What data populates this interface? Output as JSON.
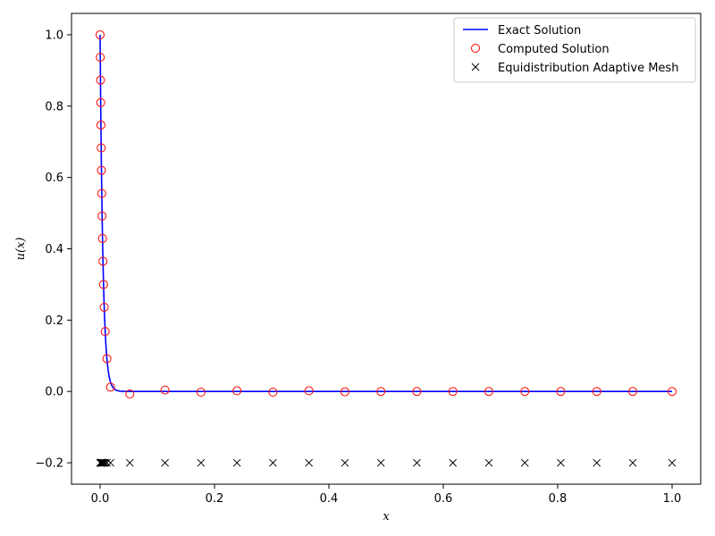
{
  "chart_data": {
    "type": "line",
    "title": "",
    "xlabel": "x",
    "ylabel": "u(x)",
    "xlim": [
      -0.05,
      1.05
    ],
    "ylim": [
      -0.26,
      1.06
    ],
    "xticks": [
      0.0,
      0.2,
      0.4,
      0.6,
      0.8,
      1.0
    ],
    "xtick_labels": [
      "0.0",
      "0.2",
      "0.4",
      "0.6",
      "0.8",
      "1.0"
    ],
    "yticks": [
      -0.2,
      0.0,
      0.2,
      0.4,
      0.6,
      0.8,
      1.0
    ],
    "ytick_labels": [
      "−0.2",
      "0.0",
      "0.2",
      "0.4",
      "0.6",
      "0.8",
      "1.0"
    ],
    "grid": false,
    "legend_position": "top-right",
    "series": [
      {
        "name": "Exact Solution",
        "kind": "line",
        "color": "#0000ff",
        "function": "exp(-x/0.005)"
      },
      {
        "name": "Computed Solution",
        "kind": "scatter",
        "marker": "circle",
        "color": "#ff0000",
        "x": [
          0.0,
          0.0003,
          0.0007,
          0.0011,
          0.0015,
          0.0019,
          0.0024,
          0.0029,
          0.0035,
          0.0042,
          0.005,
          0.006,
          0.0072,
          0.0089,
          0.0119,
          0.0182,
          0.052,
          0.1135,
          0.1764,
          0.2393,
          0.3022,
          0.3651,
          0.428,
          0.4909,
          0.5538,
          0.6167,
          0.6796,
          0.7425,
          0.8054,
          0.8683,
          0.9312,
          1.0
        ],
        "y": [
          1.0,
          0.937,
          0.873,
          0.81,
          0.747,
          0.683,
          0.62,
          0.555,
          0.492,
          0.429,
          0.365,
          0.3,
          0.236,
          0.168,
          0.092,
          0.012,
          -0.007,
          0.004,
          -0.002,
          0.002,
          -0.002,
          0.002,
          -0.001,
          0.0,
          0.0,
          0.0,
          0.0,
          0.0,
          0.0,
          0.0,
          0.0,
          0.0
        ]
      },
      {
        "name": "Equidistribution Adaptive Mesh",
        "kind": "scatter",
        "marker": "x",
        "color": "#000000",
        "x": [
          0.0,
          0.0003,
          0.0007,
          0.0011,
          0.0015,
          0.0019,
          0.0024,
          0.0029,
          0.0035,
          0.0042,
          0.005,
          0.006,
          0.0072,
          0.0089,
          0.0119,
          0.0182,
          0.052,
          0.1135,
          0.1764,
          0.2393,
          0.3022,
          0.3651,
          0.428,
          0.4909,
          0.5538,
          0.6167,
          0.6796,
          0.7425,
          0.8054,
          0.8683,
          0.9312,
          1.0
        ],
        "y_constant": -0.2
      }
    ]
  }
}
